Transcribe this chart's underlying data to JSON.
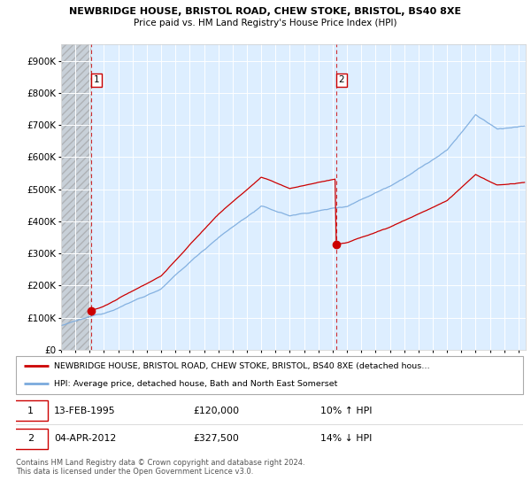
{
  "title1": "NEWBRIDGE HOUSE, BRISTOL ROAD, CHEW STOKE, BRISTOL, BS40 8XE",
  "title2": "Price paid vs. HM Land Registry's House Price Index (HPI)",
  "ylim": [
    0,
    950000
  ],
  "yticks": [
    0,
    100000,
    200000,
    300000,
    400000,
    500000,
    600000,
    700000,
    800000,
    900000
  ],
  "ytick_labels": [
    "£0",
    "£100K",
    "£200K",
    "£300K",
    "£400K",
    "£500K",
    "£600K",
    "£700K",
    "£800K",
    "£900K"
  ],
  "sale1_year": 1995.11,
  "sale1_price": 120000,
  "sale1_label": "1",
  "sale2_year": 2012.26,
  "sale2_price": 327500,
  "sale2_label": "2",
  "hpi_color": "#7aaadd",
  "price_color": "#cc0000",
  "sale_dot_color": "#cc0000",
  "background_chart": "#ddeeff",
  "legend_label1": "NEWBRIDGE HOUSE, BRISTOL ROAD, CHEW STOKE, BRISTOL, BS40 8XE (detached hous…",
  "legend_label2": "HPI: Average price, detached house, Bath and North East Somerset",
  "annotation1_date": "13-FEB-1995",
  "annotation1_price": "£120,000",
  "annotation1_hpi": "10% ↑ HPI",
  "annotation2_date": "04-APR-2012",
  "annotation2_price": "£327,500",
  "annotation2_hpi": "14% ↓ HPI",
  "footer": "Contains HM Land Registry data © Crown copyright and database right 2024.\nThis data is licensed under the Open Government Licence v3.0.",
  "x_start": 1993,
  "x_end": 2025.5,
  "xtick_start": 1993,
  "xtick_end": 2026
}
